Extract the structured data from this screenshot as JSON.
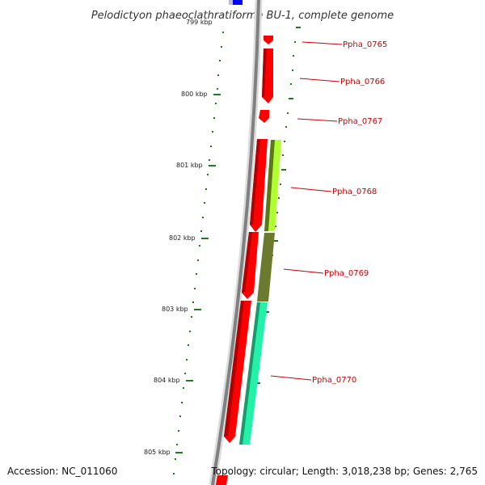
{
  "title": "Pelodictyon phaeoclathratiforme BU-1, complete genome",
  "colors": {
    "backbone": "#808080",
    "gene_red": "#ff0000",
    "gene_red_dark": "#b40000",
    "gene_blue": "#0000ff",
    "gene_lime": "#b0ff30",
    "gene_olive": "#6b7a2c",
    "gene_aqua": "#25f0a8",
    "tick_green": "#1e7a1e",
    "label_red": "#cc0000"
  },
  "scale": {
    "partial_top_label": "799 kbp",
    "labels": [
      "800 kbp",
      "801 kbp",
      "802 kbp",
      "803 kbp",
      "804 kbp",
      "805 kbp"
    ]
  },
  "genes": [
    {
      "label": "Ppha_0765",
      "color": "red",
      "strand": "reverse"
    },
    {
      "label": "Ppha_0766",
      "color": "red",
      "strand": "reverse"
    },
    {
      "label": "Ppha_0767",
      "color": "red",
      "strand": "reverse"
    },
    {
      "label": "Ppha_0768",
      "color": "lime",
      "strand": "forward"
    },
    {
      "label": "Ppha_0769",
      "color": "olive",
      "strand": "forward"
    },
    {
      "label": "Ppha_0770",
      "color": "aqua",
      "strand": "forward"
    }
  ],
  "footer": {
    "accession": "Accession: NC_011060",
    "stats": "Topology: circular; Length: 3,018,238 bp; Genes: 2,765"
  }
}
